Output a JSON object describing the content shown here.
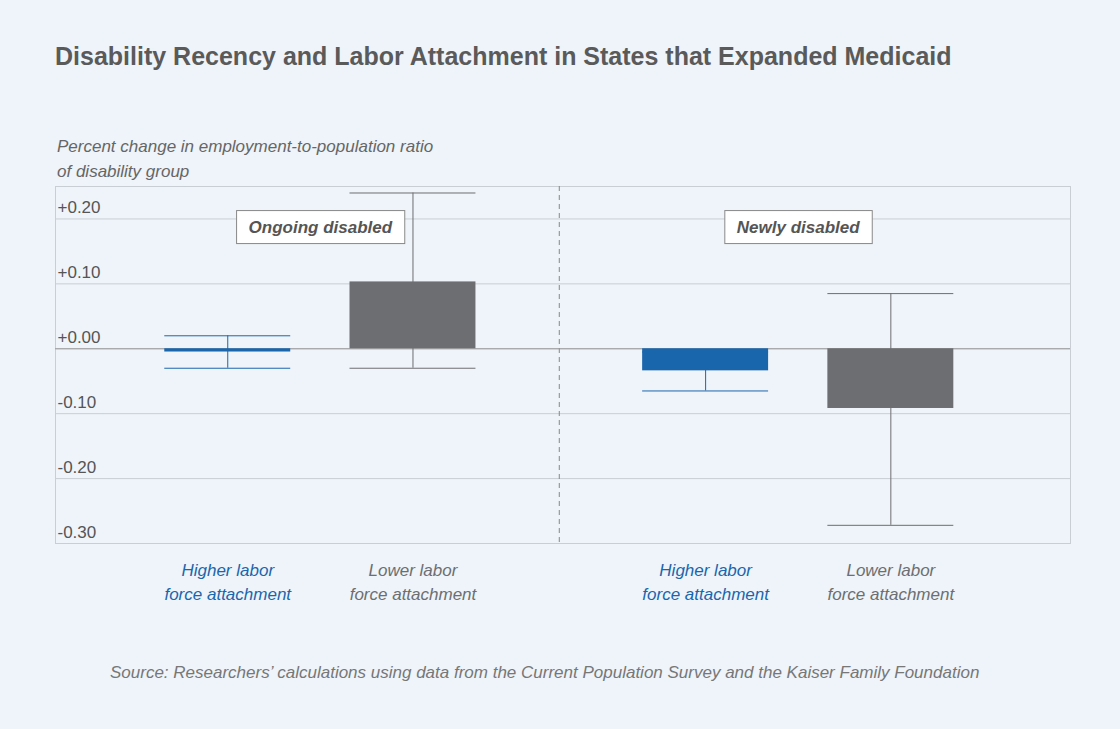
{
  "chart_data": {
    "type": "bar",
    "title": "Disability Recency and Labor Attachment in States that Expanded Medicaid",
    "y_label": "Percent change in employment-to-population ratio of disability group",
    "categories": [
      "Higher labor force attachment",
      "Lower labor force attachment",
      "Higher labor force attachment",
      "Lower labor force attachment"
    ],
    "groups": [
      "Ongoing disabled",
      "Ongoing disabled",
      "Newly disabled",
      "Newly disabled"
    ],
    "values": [
      -0.005,
      0.103,
      -0.034,
      -0.092
    ],
    "error_low": [
      -0.03,
      -0.03,
      -0.065,
      -0.272
    ],
    "error_high": [
      0.02,
      0.24,
      -0.005,
      0.085
    ],
    "colors": [
      "#1a66ad",
      "#6d6e71",
      "#1a66ad",
      "#6d6e71"
    ],
    "ylim": [
      -0.3,
      0.25
    ],
    "yticks": [
      {
        "value": 0.2,
        "label": "+0.20"
      },
      {
        "value": 0.1,
        "label": "+0.10"
      },
      {
        "value": 0,
        "label": "+0.00"
      },
      {
        "value": -0.1,
        "label": "-0.10"
      },
      {
        "value": -0.2,
        "label": "-0.20"
      },
      {
        "value": -0.3,
        "label": "-0.30"
      }
    ],
    "grid": true,
    "source": "Source: Researchers’ calculations using data from the Current Population Survey and the Kaiser Family Foundation"
  }
}
